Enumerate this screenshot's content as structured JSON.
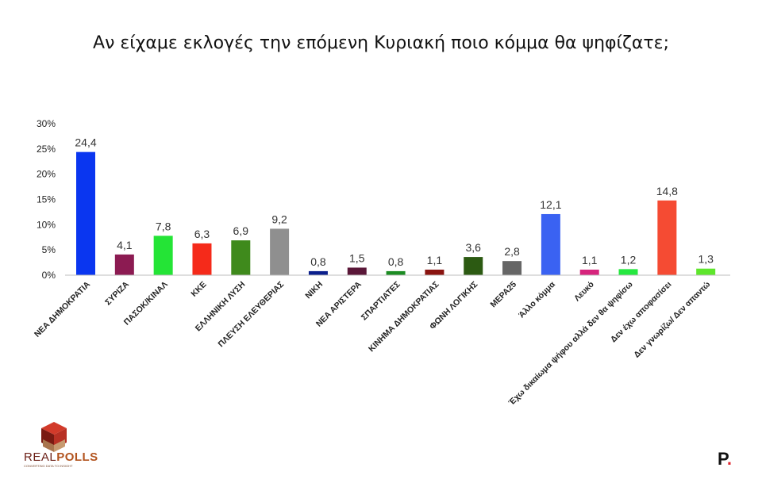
{
  "chart_data": {
    "type": "bar",
    "title": "Αν είχαμε εκλογές την επόμενη Κυριακή ποιο κόμμα θα ψηφίζατε;",
    "xlabel": "",
    "ylabel": "",
    "ylim": [
      0,
      30
    ],
    "y_ticks": [
      "0%",
      "5%",
      "10%",
      "15%",
      "20%",
      "25%",
      "30%"
    ],
    "y_tick_values": [
      0,
      5,
      10,
      15,
      20,
      25,
      30
    ],
    "grid": false,
    "categories": [
      "ΝΕΑ ΔΗΜΟΚΡΑΤΙΑ",
      "ΣΥΡΙΖΑ",
      "ΠΑΣΟΚ/ΚΙΝΑΛ",
      "ΚΚΕ",
      "ΕΛΛΗΝΙΚΗ ΛΥΣΗ",
      "ΠΛΕΥΣΗ ΕΛΕΥΘΕΡΙΑΣ",
      "ΝΙΚΗ",
      "ΝΕΑ ΑΡΙΣΤΕΡΑ",
      "ΣΠΑΡΤΙΑΤΕΣ",
      "ΚΙΝΗΜΑ ΔΗΜΟΚΡΑΤΙΑΣ",
      "ΦΩΝΗ ΛΟΓΙΚΗΣ",
      "ΜΕΡΑ25",
      "Άλλο κόμμα",
      "Λευκό",
      "Έχω δικαίωμα ψήφου αλλά δεν θα ψηφίσω",
      "Δεν έχω αποφασίσει",
      "Δεν γνωρίζω/ Δεν απαντώ"
    ],
    "values": [
      24.4,
      4.1,
      7.8,
      6.3,
      6.9,
      9.2,
      0.8,
      1.5,
      0.8,
      1.1,
      3.6,
      2.8,
      12.1,
      1.1,
      1.2,
      14.8,
      1.3
    ],
    "value_labels": [
      "24,4",
      "4,1",
      "7,8",
      "6,3",
      "6,9",
      "9,2",
      "0,8",
      "1,5",
      "0,8",
      "1,1",
      "3,6",
      "2,8",
      "12,1",
      "1,1",
      "1,2",
      "14,8",
      "1,3"
    ],
    "colors": [
      "#0a36f0",
      "#8c1b52",
      "#24e436",
      "#f52a1a",
      "#3f8a1c",
      "#8f8f8f",
      "#0b1f8c",
      "#5a1738",
      "#1c8c23",
      "#8a1410",
      "#2c5a12",
      "#666666",
      "#3a62f2",
      "#d6247c",
      "#26e840",
      "#f54b33",
      "#5ee62c"
    ]
  },
  "branding": {
    "left_logo_text_a": "REAL",
    "left_logo_text_b": "POLLS",
    "left_logo_tagline": "CONVERTING DATA TO INSIGHT",
    "right_logo_text": "P",
    "right_logo_dot": "."
  }
}
